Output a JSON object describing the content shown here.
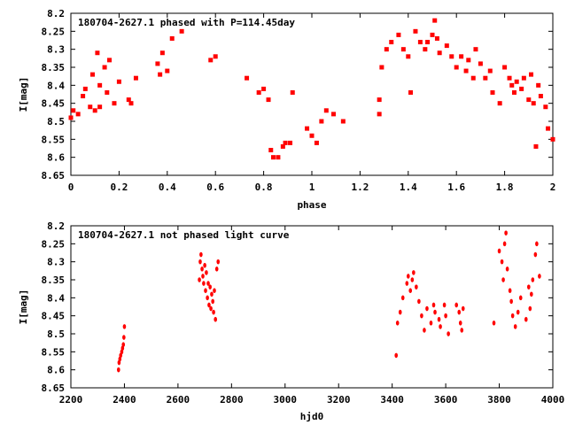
{
  "chart_data": [
    {
      "type": "scatter",
      "title": "180704-2627.1 phased with P=114.45day",
      "xlabel": "phase",
      "ylabel": "I[mag]",
      "xlim": [
        0,
        2
      ],
      "ylim": [
        8.2,
        8.65
      ],
      "y_inverted": true,
      "x_ticks": [
        "0",
        "0.2",
        "0.4",
        "0.6",
        "0.8",
        "1",
        "1.2",
        "1.4",
        "1.6",
        "1.8",
        "2"
      ],
      "y_ticks": [
        "8.2",
        "8.25",
        "8.3",
        "8.35",
        "8.4",
        "8.45",
        "8.5",
        "8.55",
        "8.6",
        "8.65"
      ],
      "marker_color": "#ff0000",
      "series": [
        {
          "x": [
            0.0,
            0.01,
            0.03,
            0.05,
            0.06,
            0.08,
            0.09,
            0.1,
            0.11,
            0.12,
            0.12,
            0.14,
            0.15,
            0.16,
            0.18,
            0.2,
            0.24,
            0.25,
            0.27,
            0.36,
            0.37,
            0.38,
            0.4,
            0.42,
            0.46,
            0.58,
            0.6,
            0.73,
            0.78,
            0.8,
            0.82,
            0.83,
            0.84,
            0.86,
            0.88,
            0.89,
            0.91,
            0.92,
            0.98,
            1.0,
            1.02,
            1.04,
            1.06,
            1.09,
            1.13,
            1.28,
            1.28,
            1.29,
            1.31,
            1.33,
            1.36,
            1.38,
            1.4,
            1.41,
            1.43,
            1.45,
            1.47,
            1.48,
            1.5,
            1.51,
            1.52,
            1.53,
            1.56,
            1.58,
            1.6,
            1.62,
            1.64,
            1.65,
            1.67,
            1.68,
            1.7,
            1.72,
            1.74,
            1.75,
            1.78,
            1.8,
            1.82,
            1.83,
            1.84,
            1.85,
            1.87,
            1.88,
            1.9,
            1.91,
            1.92,
            1.93,
            1.94,
            1.95,
            1.97,
            1.98,
            2.0
          ],
          "y": [
            8.49,
            8.47,
            8.48,
            8.43,
            8.41,
            8.46,
            8.37,
            8.47,
            8.31,
            8.4,
            8.46,
            8.35,
            8.42,
            8.33,
            8.45,
            8.39,
            8.44,
            8.45,
            8.38,
            8.34,
            8.37,
            8.31,
            8.36,
            8.27,
            8.25,
            8.33,
            8.32,
            8.38,
            8.42,
            8.41,
            8.44,
            8.58,
            8.6,
            8.6,
            8.57,
            8.56,
            8.56,
            8.42,
            8.52,
            8.54,
            8.56,
            8.5,
            8.47,
            8.48,
            8.5,
            8.48,
            8.44,
            8.35,
            8.3,
            8.28,
            8.26,
            8.3,
            8.32,
            8.42,
            8.25,
            8.28,
            8.3,
            8.28,
            8.26,
            8.22,
            8.27,
            8.31,
            8.29,
            8.32,
            8.35,
            8.32,
            8.36,
            8.33,
            8.38,
            8.3,
            8.34,
            8.38,
            8.36,
            8.42,
            8.45,
            8.35,
            8.38,
            8.4,
            8.42,
            8.39,
            8.41,
            8.38,
            8.44,
            8.37,
            8.45,
            8.57,
            8.4,
            8.43,
            8.46,
            8.52,
            8.55
          ]
        }
      ]
    },
    {
      "type": "scatter",
      "title": "180704-2627.1 not phased light curve",
      "xlabel": "hjd0",
      "ylabel": "I[mag]",
      "xlim": [
        2200,
        4000
      ],
      "ylim": [
        8.2,
        8.65
      ],
      "y_inverted": true,
      "x_ticks": [
        "2200",
        "2400",
        "2600",
        "2800",
        "3000",
        "3200",
        "3400",
        "3600",
        "3800",
        "4000"
      ],
      "y_ticks": [
        "8.2",
        "8.25",
        "8.3",
        "8.35",
        "8.4",
        "8.45",
        "8.5",
        "8.55",
        "8.6",
        "8.65"
      ],
      "marker_color": "#ff0000",
      "series": [
        {
          "x": [
            2378,
            2380,
            2383,
            2386,
            2390,
            2393,
            2396,
            2398,
            2400,
            2680,
            2683,
            2686,
            2690,
            2693,
            2696,
            2700,
            2703,
            2706,
            2710,
            2713,
            2716,
            2720,
            2723,
            2726,
            2730,
            2733,
            2736,
            2740,
            2745,
            2750,
            3415,
            3420,
            3430,
            3440,
            3455,
            3460,
            3468,
            3475,
            3480,
            3490,
            3500,
            3510,
            3520,
            3530,
            3545,
            3555,
            3560,
            3575,
            3580,
            3595,
            3600,
            3610,
            3640,
            3650,
            3655,
            3660,
            3665,
            3780,
            3800,
            3810,
            3815,
            3820,
            3825,
            3830,
            3840,
            3845,
            3850,
            3860,
            3870,
            3880,
            3900,
            3910,
            3915,
            3920,
            3925,
            3935,
            3940,
            3950
          ],
          "y": [
            8.6,
            8.58,
            8.57,
            8.56,
            8.55,
            8.54,
            8.53,
            8.51,
            8.48,
            8.35,
            8.3,
            8.28,
            8.32,
            8.34,
            8.36,
            8.31,
            8.38,
            8.33,
            8.4,
            8.36,
            8.42,
            8.37,
            8.43,
            8.39,
            8.41,
            8.44,
            8.38,
            8.46,
            8.32,
            8.3,
            8.56,
            8.47,
            8.44,
            8.4,
            8.36,
            8.34,
            8.38,
            8.35,
            8.33,
            8.37,
            8.41,
            8.45,
            8.49,
            8.43,
            8.47,
            8.42,
            8.44,
            8.46,
            8.48,
            8.42,
            8.45,
            8.5,
            8.42,
            8.44,
            8.47,
            8.49,
            8.43,
            8.47,
            8.27,
            8.3,
            8.35,
            8.25,
            8.22,
            8.32,
            8.38,
            8.41,
            8.45,
            8.48,
            8.44,
            8.4,
            8.46,
            8.37,
            8.43,
            8.39,
            8.35,
            8.28,
            8.25,
            8.34
          ]
        }
      ]
    }
  ]
}
